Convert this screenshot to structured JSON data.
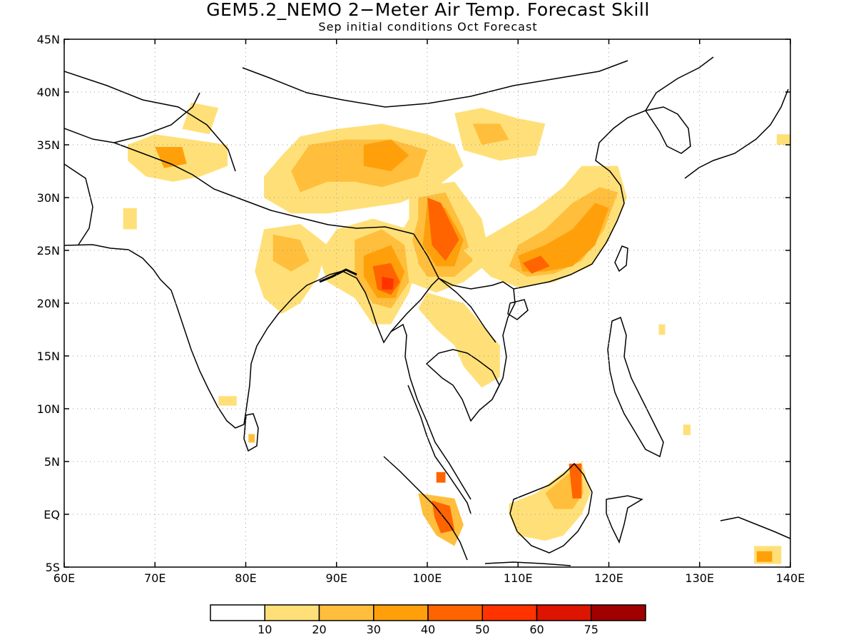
{
  "title": "GEM5.2_NEMO 2−Meter Air Temp. Forecast Skill",
  "subtitle": "Sep initial conditions  Oct Forecast",
  "map": {
    "lon_range": [
      60,
      140
    ],
    "lat_range": [
      -5,
      45
    ],
    "lon_ticks": [
      {
        "value": 60,
        "label": "60E"
      },
      {
        "value": 70,
        "label": "70E"
      },
      {
        "value": 80,
        "label": "80E"
      },
      {
        "value": 90,
        "label": "90E"
      },
      {
        "value": 100,
        "label": "100E"
      },
      {
        "value": 110,
        "label": "110E"
      },
      {
        "value": 120,
        "label": "120E"
      },
      {
        "value": 130,
        "label": "130E"
      },
      {
        "value": 140,
        "label": "140E"
      }
    ],
    "lat_ticks": [
      {
        "value": -5,
        "label": "5S"
      },
      {
        "value": 0,
        "label": "EQ"
      },
      {
        "value": 5,
        "label": "5N"
      },
      {
        "value": 10,
        "label": "10N"
      },
      {
        "value": 15,
        "label": "15N"
      },
      {
        "value": 20,
        "label": "20N"
      },
      {
        "value": 25,
        "label": "25N"
      },
      {
        "value": 30,
        "label": "30N"
      },
      {
        "value": 35,
        "label": "35N"
      },
      {
        "value": 40,
        "label": "40N"
      },
      {
        "value": 45,
        "label": "45N"
      }
    ],
    "grid": "dotted"
  },
  "colorbar": {
    "colors": [
      "#ffffff",
      "#ffe078",
      "#ffbe3c",
      "#ffa00a",
      "#ff6400",
      "#ff3200",
      "#dc1400",
      "#a00000"
    ],
    "labels": [
      "10",
      "20",
      "30",
      "40",
      "50",
      "60",
      "75"
    ]
  },
  "skill_regions": [
    {
      "name": "tibet-west",
      "level": 1,
      "pts": [
        [
          86,
          35.8
        ],
        [
          90,
          36.5
        ],
        [
          95,
          37
        ],
        [
          100,
          36
        ],
        [
          103,
          35
        ],
        [
          104,
          33
        ],
        [
          101,
          31
        ],
        [
          97,
          29.5
        ],
        [
          93,
          29
        ],
        [
          89,
          28.5
        ],
        [
          85,
          28.5
        ],
        [
          82,
          30
        ],
        [
          82,
          32
        ],
        [
          84,
          34
        ]
      ]
    },
    {
      "name": "tibet-west-core",
      "level": 2,
      "pts": [
        [
          87,
          35
        ],
        [
          91,
          35.5
        ],
        [
          96,
          35.5
        ],
        [
          100,
          34.5
        ],
        [
          99,
          32
        ],
        [
          95,
          31
        ],
        [
          92,
          31.5
        ],
        [
          89,
          31.5
        ],
        [
          86,
          30.5
        ],
        [
          85,
          32.5
        ]
      ]
    },
    {
      "name": "tibet-north",
      "level": 3,
      "pts": [
        [
          93,
          35
        ],
        [
          96,
          35.5
        ],
        [
          98,
          34
        ],
        [
          96,
          32.5
        ],
        [
          93,
          33
        ]
      ]
    },
    {
      "name": "qinghai",
      "level": 1,
      "pts": [
        [
          103,
          38
        ],
        [
          106,
          38.5
        ],
        [
          110,
          37.5
        ],
        [
          113,
          37
        ],
        [
          112,
          34
        ],
        [
          108,
          33.5
        ],
        [
          104,
          34.5
        ]
      ]
    },
    {
      "name": "qinghai-core",
      "level": 2,
      "pts": [
        [
          105,
          37
        ],
        [
          108,
          37
        ],
        [
          109,
          35.5
        ],
        [
          106,
          35
        ]
      ]
    },
    {
      "name": "central-south",
      "level": 1,
      "pts": [
        [
          98,
          31
        ],
        [
          103,
          31.5
        ],
        [
          106,
          28
        ],
        [
          107,
          24
        ],
        [
          104,
          22
        ],
        [
          101,
          21
        ],
        [
          98,
          22
        ],
        [
          96,
          25
        ],
        [
          98,
          28
        ]
      ]
    },
    {
      "name": "central-south-2",
      "level": 2,
      "pts": [
        [
          99,
          30
        ],
        [
          102,
          30.5
        ],
        [
          104,
          27
        ],
        [
          105,
          24
        ],
        [
          103,
          22.5
        ],
        [
          100,
          22.5
        ],
        [
          98,
          25
        ],
        [
          99,
          28
        ]
      ]
    },
    {
      "name": "central-south-3",
      "level": 3,
      "pts": [
        [
          100,
          29.5
        ],
        [
          102,
          29
        ],
        [
          104,
          26
        ],
        [
          103,
          23.5
        ],
        [
          101,
          23.5
        ],
        [
          99.5,
          25.5
        ]
      ]
    },
    {
      "name": "central-south-4",
      "level": 4,
      "pts": [
        [
          100,
          30
        ],
        [
          101.5,
          29.5
        ],
        [
          103.5,
          26
        ],
        [
          102,
          24
        ],
        [
          100.5,
          25.5
        ]
      ]
    },
    {
      "name": "myanmar",
      "level": 1,
      "pts": [
        [
          90,
          27
        ],
        [
          94,
          28
        ],
        [
          98,
          27
        ],
        [
          99,
          24
        ],
        [
          98,
          21
        ],
        [
          96,
          18
        ],
        [
          94,
          18
        ],
        [
          92,
          20.5
        ],
        [
          89,
          22
        ],
        [
          88,
          24.5
        ]
      ]
    },
    {
      "name": "myanmar-2",
      "level": 2,
      "pts": [
        [
          92,
          26
        ],
        [
          95,
          27
        ],
        [
          97.5,
          25.5
        ],
        [
          98,
          22
        ],
        [
          96,
          19.5
        ],
        [
          94,
          20
        ],
        [
          92,
          22.5
        ]
      ]
    },
    {
      "name": "myanmar-3",
      "level": 3,
      "pts": [
        [
          93,
          24.5
        ],
        [
          96,
          25.5
        ],
        [
          97.5,
          23
        ],
        [
          96.5,
          20.5
        ],
        [
          94.5,
          20.5
        ],
        [
          93,
          22.5
        ]
      ]
    },
    {
      "name": "myanmar-4",
      "level": 4,
      "pts": [
        [
          94,
          23.5
        ],
        [
          96,
          23.8
        ],
        [
          97,
          22
        ],
        [
          96,
          20.8
        ],
        [
          94.5,
          21.3
        ]
      ]
    },
    {
      "name": "myanmar-5",
      "level": 5,
      "pts": [
        [
          95,
          22.5
        ],
        [
          96.3,
          22.3
        ],
        [
          96.2,
          21.3
        ],
        [
          95,
          21.3
        ]
      ]
    },
    {
      "name": "south-china",
      "level": 1,
      "pts": [
        [
          104,
          25
        ],
        [
          108,
          27
        ],
        [
          112,
          29
        ],
        [
          115,
          31
        ],
        [
          117,
          33
        ],
        [
          121,
          33
        ],
        [
          122,
          30
        ],
        [
          120,
          26
        ],
        [
          118,
          23.5
        ],
        [
          114,
          22
        ],
        [
          110,
          21.5
        ],
        [
          107,
          22.5
        ]
      ]
    },
    {
      "name": "south-china-2",
      "level": 2,
      "pts": [
        [
          110,
          25.5
        ],
        [
          113,
          27
        ],
        [
          116,
          29.5
        ],
        [
          119,
          31
        ],
        [
          121,
          30.5
        ],
        [
          119.5,
          27
        ],
        [
          117,
          24
        ],
        [
          114,
          22.8
        ],
        [
          111,
          22.5
        ],
        [
          109,
          23.5
        ]
      ]
    },
    {
      "name": "south-china-3",
      "level": 3,
      "pts": [
        [
          110,
          24.5
        ],
        [
          113,
          25.5
        ],
        [
          116,
          27
        ],
        [
          118.5,
          29.5
        ],
        [
          120,
          29
        ],
        [
          118.5,
          25.5
        ],
        [
          116,
          23.5
        ],
        [
          113,
          23
        ],
        [
          110.5,
          23
        ]
      ]
    },
    {
      "name": "south-china-4",
      "level": 4,
      "pts": [
        [
          110.5,
          23.8
        ],
        [
          112.5,
          24.5
        ],
        [
          113.5,
          23.5
        ],
        [
          111.5,
          22.8
        ]
      ]
    },
    {
      "name": "pakistan",
      "level": 1,
      "pts": [
        [
          67,
          35
        ],
        [
          70,
          36
        ],
        [
          74,
          35.5
        ],
        [
          78,
          35
        ],
        [
          78,
          33
        ],
        [
          75,
          32
        ],
        [
          72,
          31.5
        ],
        [
          69,
          32
        ],
        [
          67,
          33.5
        ]
      ]
    },
    {
      "name": "pakistan-core",
      "level": 3,
      "pts": [
        [
          70,
          34.8
        ],
        [
          73,
          34.8
        ],
        [
          73.5,
          33.2
        ],
        [
          71,
          32.8
        ]
      ]
    },
    {
      "name": "kashmir",
      "level": 1,
      "pts": [
        [
          74,
          39
        ],
        [
          77,
          38.5
        ],
        [
          76,
          36
        ],
        [
          73,
          36.5
        ]
      ]
    },
    {
      "name": "india-east",
      "level": 1,
      "pts": [
        [
          82,
          27
        ],
        [
          86,
          27.5
        ],
        [
          89,
          25.5
        ],
        [
          88,
          22.5
        ],
        [
          86,
          20
        ],
        [
          84,
          19
        ],
        [
          82,
          20.5
        ],
        [
          81,
          23
        ]
      ]
    },
    {
      "name": "india-east-core",
      "level": 2,
      "pts": [
        [
          83,
          26.5
        ],
        [
          86,
          26
        ],
        [
          87,
          24
        ],
        [
          85,
          23
        ],
        [
          83,
          24
        ]
      ]
    },
    {
      "name": "thailand-laos",
      "level": 1,
      "pts": [
        [
          100,
          21
        ],
        [
          104,
          20
        ],
        [
          106,
          18
        ],
        [
          108,
          16
        ],
        [
          108,
          13
        ],
        [
          106,
          12
        ],
        [
          104,
          14
        ],
        [
          103,
          16
        ],
        [
          101,
          17.5
        ],
        [
          99,
          19.5
        ]
      ]
    },
    {
      "name": "sri-lanka",
      "level": 2,
      "pts": [
        [
          80.3,
          7.6
        ],
        [
          81,
          7.6
        ],
        [
          81,
          6.8
        ],
        [
          80.3,
          6.8
        ]
      ]
    },
    {
      "name": "south-india-spot",
      "level": 1,
      "pts": [
        [
          77,
          11.2
        ],
        [
          79,
          11.2
        ],
        [
          79,
          10.3
        ],
        [
          77,
          10.3
        ]
      ]
    },
    {
      "name": "india-west-spot",
      "level": 1,
      "pts": [
        [
          66.5,
          29
        ],
        [
          68,
          29
        ],
        [
          68,
          27
        ],
        [
          66.5,
          27
        ]
      ]
    },
    {
      "name": "sumatra",
      "level": 2,
      "pts": [
        [
          99,
          2
        ],
        [
          103,
          1.5
        ],
        [
          104,
          -1
        ],
        [
          103,
          -3
        ],
        [
          101,
          -2
        ],
        [
          99.5,
          0
        ]
      ]
    },
    {
      "name": "sumatra-core",
      "level": 4,
      "pts": [
        [
          100.5,
          1.3
        ],
        [
          102.5,
          0.8
        ],
        [
          103,
          -1.5
        ],
        [
          101.5,
          -1.8
        ],
        [
          100.8,
          -0.3
        ]
      ]
    },
    {
      "name": "malaysia-spot",
      "level": 4,
      "pts": [
        [
          101,
          4
        ],
        [
          102,
          4
        ],
        [
          102,
          3
        ],
        [
          101,
          3
        ]
      ]
    },
    {
      "name": "borneo",
      "level": 1,
      "pts": [
        [
          109,
          1
        ],
        [
          112,
          2
        ],
        [
          115,
          4
        ],
        [
          117,
          5
        ],
        [
          118,
          2
        ],
        [
          117,
          0
        ],
        [
          115,
          -2
        ],
        [
          113,
          -2.5
        ],
        [
          110,
          -2
        ],
        [
          109,
          0
        ]
      ]
    },
    {
      "name": "borneo-2",
      "level": 2,
      "pts": [
        [
          113,
          2
        ],
        [
          115.5,
          3.8
        ],
        [
          117,
          4.5
        ],
        [
          117.2,
          2
        ],
        [
          116,
          0.5
        ],
        [
          114,
          0.5
        ]
      ]
    },
    {
      "name": "borneo-3",
      "level": 4,
      "pts": [
        [
          115.6,
          4.8
        ],
        [
          117,
          4.8
        ],
        [
          117,
          1.5
        ],
        [
          116,
          1.5
        ]
      ]
    },
    {
      "name": "philippines-spot",
      "level": 1,
      "pts": [
        [
          128.2,
          8.5
        ],
        [
          129,
          8.5
        ],
        [
          129,
          7.5
        ],
        [
          128.2,
          7.5
        ]
      ]
    },
    {
      "name": "taiwan-spot",
      "level": 1,
      "pts": [
        [
          125.5,
          18
        ],
        [
          126.2,
          18
        ],
        [
          126.2,
          17
        ],
        [
          125.5,
          17
        ]
      ]
    },
    {
      "name": "new-guinea",
      "level": 1,
      "pts": [
        [
          136,
          -3
        ],
        [
          139,
          -3
        ],
        [
          139,
          -4.7
        ],
        [
          136,
          -4.7
        ]
      ]
    },
    {
      "name": "new-guinea-core",
      "level": 3,
      "pts": [
        [
          136.3,
          -3.5
        ],
        [
          138,
          -3.5
        ],
        [
          138,
          -4.5
        ],
        [
          136.3,
          -4.5
        ]
      ]
    },
    {
      "name": "japan-spot",
      "level": 1,
      "pts": [
        [
          138.5,
          36
        ],
        [
          140,
          36
        ],
        [
          140,
          35
        ],
        [
          138.5,
          35
        ]
      ]
    }
  ]
}
